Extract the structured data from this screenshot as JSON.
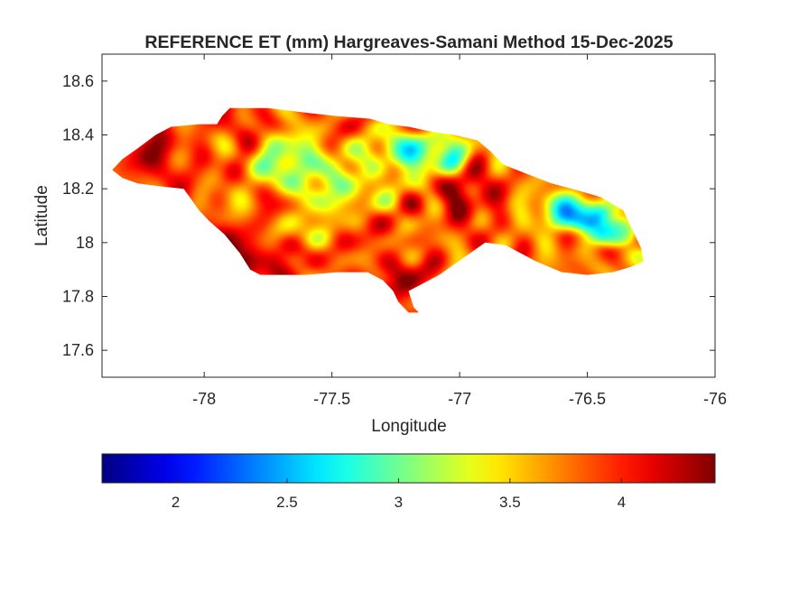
{
  "chart_data": {
    "type": "heatmap",
    "title": "REFERENCE ET (mm) Hargreaves-Samani Method  15-Dec-2025",
    "xlabel": "Longitude",
    "ylabel": "Latitude",
    "xlim": [
      -78.4,
      -76
    ],
    "ylim": [
      17.5,
      18.7
    ],
    "x_ticks": [
      -78,
      -77.5,
      -77,
      -76.5,
      -76
    ],
    "y_ticks": [
      17.6,
      17.8,
      18,
      18.2,
      18.4,
      18.6
    ],
    "x_tick_labels": [
      "-78",
      "-77.5",
      "-77",
      "-76.5",
      "-76"
    ],
    "y_tick_labels": [
      "17.6",
      "17.8",
      "18",
      "18.2",
      "18.4",
      "18.6"
    ],
    "colormap": "jet",
    "colorbar": {
      "location": "bottom",
      "range": [
        1.67,
        4.42
      ],
      "ticks": [
        2,
        2.5,
        3,
        3.5,
        4
      ],
      "tick_labels": [
        "2",
        "2.5",
        "3",
        "3.5",
        "4"
      ]
    },
    "grid": false,
    "region_outline": [
      [
        -78.36,
        18.27
      ],
      [
        -78.32,
        18.31
      ],
      [
        -78.26,
        18.35
      ],
      [
        -78.19,
        18.4
      ],
      [
        -78.13,
        18.43
      ],
      [
        -78.02,
        18.44
      ],
      [
        -77.95,
        18.44
      ],
      [
        -77.93,
        18.47
      ],
      [
        -77.9,
        18.5
      ],
      [
        -77.75,
        18.5
      ],
      [
        -77.58,
        18.48
      ],
      [
        -77.48,
        18.47
      ],
      [
        -77.35,
        18.46
      ],
      [
        -77.28,
        18.44
      ],
      [
        -77.2,
        18.43
      ],
      [
        -77.1,
        18.41
      ],
      [
        -77.02,
        18.4
      ],
      [
        -76.93,
        18.38
      ],
      [
        -76.88,
        18.34
      ],
      [
        -76.83,
        18.29
      ],
      [
        -76.75,
        18.26
      ],
      [
        -76.64,
        18.22
      ],
      [
        -76.56,
        18.2
      ],
      [
        -76.45,
        18.17
      ],
      [
        -76.36,
        18.12
      ],
      [
        -76.32,
        18.04
      ],
      [
        -76.29,
        17.98
      ],
      [
        -76.28,
        17.93
      ],
      [
        -76.33,
        17.91
      ],
      [
        -76.4,
        17.89
      ],
      [
        -76.5,
        17.88
      ],
      [
        -76.6,
        17.89
      ],
      [
        -76.7,
        17.93
      ],
      [
        -76.82,
        17.99
      ],
      [
        -76.9,
        18.0
      ],
      [
        -76.96,
        17.96
      ],
      [
        -77.02,
        17.92
      ],
      [
        -77.08,
        17.88
      ],
      [
        -77.12,
        17.86
      ],
      [
        -77.16,
        17.84
      ],
      [
        -77.2,
        17.82
      ],
      [
        -77.18,
        17.76
      ],
      [
        -77.16,
        17.74
      ],
      [
        -77.2,
        17.74
      ],
      [
        -77.24,
        17.78
      ],
      [
        -77.26,
        17.82
      ],
      [
        -77.3,
        17.86
      ],
      [
        -77.36,
        17.89
      ],
      [
        -77.48,
        17.89
      ],
      [
        -77.6,
        17.88
      ],
      [
        -77.68,
        17.88
      ],
      [
        -77.74,
        17.88
      ],
      [
        -77.78,
        17.88
      ],
      [
        -77.82,
        17.9
      ],
      [
        -77.86,
        17.96
      ],
      [
        -77.92,
        18.03
      ],
      [
        -77.98,
        18.08
      ],
      [
        -78.02,
        18.12
      ],
      [
        -78.08,
        18.2
      ],
      [
        -78.18,
        18.21
      ],
      [
        -78.26,
        18.22
      ],
      [
        -78.32,
        18.24
      ],
      [
        -78.36,
        18.27
      ]
    ],
    "hotspots": [
      {
        "lon": -78.2,
        "lat": 18.32,
        "value": 4.2,
        "spread": 0.14
      },
      {
        "lon": -77.86,
        "lat": 17.97,
        "value": 4.35,
        "spread": 0.11
      },
      {
        "lon": -77.7,
        "lat": 17.94,
        "value": 4.2,
        "spread": 0.1
      },
      {
        "lon": -77.25,
        "lat": 17.85,
        "value": 4.35,
        "spread": 0.1
      },
      {
        "lon": -76.98,
        "lat": 18.17,
        "value": 4.35,
        "spread": 0.1
      },
      {
        "lon": -77.4,
        "lat": 18.05,
        "value": 4.0,
        "spread": 0.1
      },
      {
        "lon": -77.85,
        "lat": 18.46,
        "value": 4.0,
        "spread": 0.09
      },
      {
        "lon": -77.65,
        "lat": 18.3,
        "value": 2.9,
        "spread": 0.12
      },
      {
        "lon": -77.45,
        "lat": 18.22,
        "value": 3.1,
        "spread": 0.14
      },
      {
        "lon": -77.58,
        "lat": 18.05,
        "value": 3.2,
        "spread": 0.08
      },
      {
        "lon": -77.2,
        "lat": 18.35,
        "value": 2.3,
        "spread": 0.07
      },
      {
        "lon": -77.1,
        "lat": 18.33,
        "value": 2.7,
        "spread": 0.09
      },
      {
        "lon": -76.6,
        "lat": 18.12,
        "value": 2.4,
        "spread": 0.08
      },
      {
        "lon": -76.5,
        "lat": 18.1,
        "value": 1.9,
        "spread": 0.06
      },
      {
        "lon": -76.4,
        "lat": 18.04,
        "value": 2.2,
        "spread": 0.06
      },
      {
        "lon": -76.55,
        "lat": 17.93,
        "value": 3.7,
        "spread": 0.07
      },
      {
        "lon": -76.32,
        "lat": 17.94,
        "value": 3.6,
        "spread": 0.05
      }
    ],
    "base_value": 3.8
  }
}
